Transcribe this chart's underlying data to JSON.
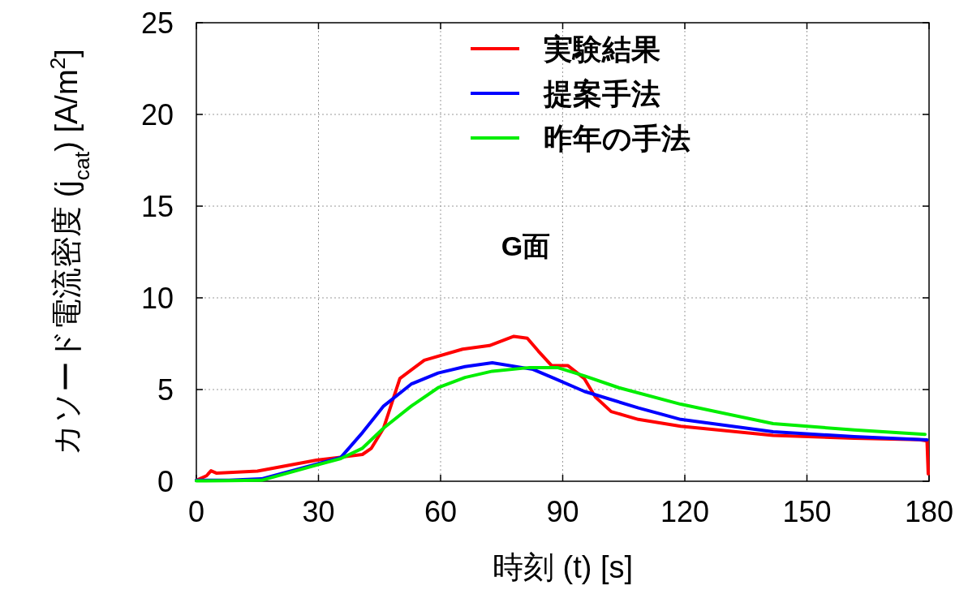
{
  "chart_data": {
    "type": "line",
    "title": "G面",
    "xlabel": "時刻 (t) [s]",
    "ylabel": "カソード電流密度 (j$_{cat}$) [A/m$^{2}$]",
    "xlim": [
      0,
      180
    ],
    "ylim": [
      0,
      25
    ],
    "xticks": [
      0,
      30,
      60,
      90,
      120,
      150,
      180
    ],
    "yticks": [
      0,
      5,
      10,
      15,
      20,
      25
    ],
    "grid": true,
    "legend": "top",
    "marker": "none",
    "line_style": "solid",
    "series": [
      {
        "name": "実験結果",
        "color": "#ff0000",
        "x": [
          0,
          2.5,
          3.6,
          5,
          15,
          29.5,
          35,
          40.8,
          43,
          46,
          50,
          56,
          65.4,
          72,
          78,
          81.3,
          84,
          87.3,
          91.3,
          95.3,
          98,
          101.9,
          108.6,
          119,
          141.7,
          161.6,
          177.6,
          179.5,
          179.8
        ],
        "values": [
          0.05,
          0.3,
          0.57,
          0.44,
          0.55,
          1.15,
          1.3,
          1.46,
          1.8,
          2.9,
          5.6,
          6.6,
          7.2,
          7.4,
          7.9,
          7.8,
          7.1,
          6.3,
          6.3,
          5.6,
          4.6,
          3.8,
          3.37,
          3.0,
          2.5,
          2.35,
          2.27,
          2.2,
          0.4
        ]
      },
      {
        "name": "提案手法",
        "color": "#0000ff",
        "x": [
          0,
          8,
          16,
          29.5,
          35.5,
          40.8,
          46,
          52.8,
          59.4,
          66,
          72.7,
          82.7,
          88,
          95.3,
          108.6,
          119,
          141.7,
          161.6,
          179.5
        ],
        "values": [
          0.05,
          0.06,
          0.13,
          0.93,
          1.3,
          2.65,
          4.1,
          5.3,
          5.9,
          6.25,
          6.46,
          6.1,
          5.6,
          4.9,
          4.0,
          3.37,
          2.7,
          2.43,
          2.26
        ]
      },
      {
        "name": "昨年の手法",
        "color": "#00ee00",
        "x": [
          0,
          8,
          16,
          29.5,
          35.5,
          40.8,
          46,
          52.8,
          59.4,
          66,
          72.7,
          81.9,
          88.7,
          95.3,
          103.8,
          119,
          141.7,
          161.6,
          179
        ],
        "values": [
          0.02,
          0.03,
          0.05,
          0.88,
          1.24,
          1.8,
          2.9,
          4.1,
          5.1,
          5.66,
          6.0,
          6.2,
          6.2,
          5.75,
          5.1,
          4.2,
          3.14,
          2.8,
          2.56
        ]
      }
    ]
  }
}
